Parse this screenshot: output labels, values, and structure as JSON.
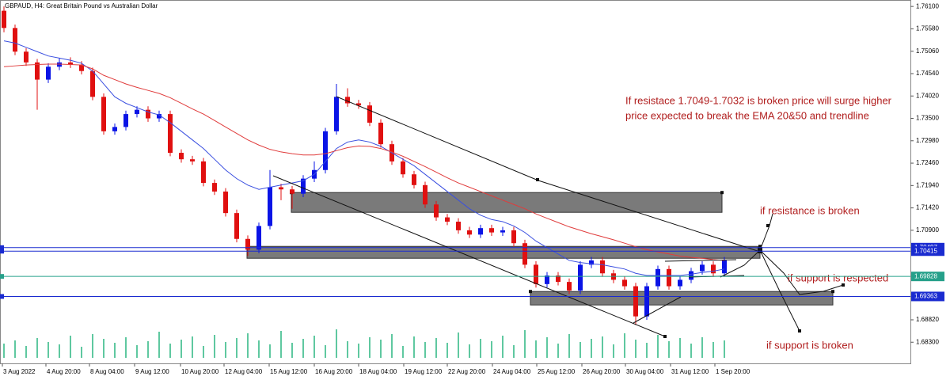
{
  "chart_data": {
    "type": "candlestick",
    "title": "GBPAUD, H4:  Great Britain Pound vs Australian Dollar",
    "up_color": "#0a14e6",
    "down_color": "#e01010",
    "volume_color": "#5fc8a0",
    "ylim": [
      1.679,
      1.7625
    ],
    "yticks": [
      {
        "value": 1.761,
        "label": "1.76100"
      },
      {
        "value": 1.7558,
        "label": "1.75580"
      },
      {
        "value": 1.7506,
        "label": "1.75060"
      },
      {
        "value": 1.7454,
        "label": "1.74540"
      },
      {
        "value": 1.7402,
        "label": "1.74020"
      },
      {
        "value": 1.735,
        "label": "1.73500"
      },
      {
        "value": 1.7298,
        "label": "1.72980"
      },
      {
        "value": 1.7246,
        "label": "1.72460"
      },
      {
        "value": 1.7194,
        "label": "1.71940"
      },
      {
        "value": 1.7142,
        "label": "1.71420"
      },
      {
        "value": 1.709,
        "label": "1.70900"
      },
      {
        "value": 1.6882,
        "label": "1.68820"
      },
      {
        "value": 1.683,
        "label": "1.68300"
      }
    ],
    "xlabels": [
      "3 Aug 2022",
      "4 Aug 20:00",
      "8 Aug 04:00",
      "9 Aug 12:00",
      "10 Aug 20:00",
      "12 Aug 04:00",
      "15 Aug 12:00",
      "16 Aug 20:00",
      "18 Aug 04:00",
      "19 Aug 12:00",
      "22 Aug 20:00",
      "24 Aug 04:00",
      "25 Aug 12:00",
      "26 Aug 20:00",
      "30 Aug 04:00",
      "31 Aug 12:00",
      "1 Sep 20:00"
    ],
    "candles": [
      [
        1.76,
        1.761,
        1.755,
        1.756
      ],
      [
        1.756,
        1.7568,
        1.7497,
        1.7505
      ],
      [
        1.7505,
        1.7513,
        1.7472,
        1.748
      ],
      [
        1.748,
        1.7488,
        1.737,
        1.744
      ],
      [
        1.744,
        1.7478,
        1.7432,
        1.747
      ],
      [
        1.747,
        1.749,
        1.7462,
        1.748
      ],
      [
        1.748,
        1.7492,
        1.7467,
        1.7475
      ],
      [
        1.7475,
        1.7483,
        1.7452,
        1.746
      ],
      [
        1.746,
        1.7468,
        1.7392,
        1.74
      ],
      [
        1.74,
        1.7408,
        1.7312,
        1.732
      ],
      [
        1.732,
        1.7338,
        1.7312,
        1.733
      ],
      [
        1.733,
        1.7368,
        1.7322,
        1.736
      ],
      [
        1.736,
        1.7378,
        1.7352,
        1.737
      ],
      [
        1.737,
        1.7378,
        1.7342,
        1.735
      ],
      [
        1.735,
        1.7368,
        1.7342,
        1.736
      ],
      [
        1.736,
        1.7368,
        1.7262,
        1.727
      ],
      [
        1.727,
        1.7278,
        1.7247,
        1.7255
      ],
      [
        1.7255,
        1.7263,
        1.7242,
        1.725
      ],
      [
        1.725,
        1.7258,
        1.7192,
        1.72
      ],
      [
        1.72,
        1.7208,
        1.7172,
        1.718
      ],
      [
        1.718,
        1.7188,
        1.7122,
        1.713
      ],
      [
        1.713,
        1.7138,
        1.7062,
        1.707
      ],
      [
        1.707,
        1.7078,
        1.703,
        1.7045
      ],
      [
        1.7045,
        1.7108,
        1.7037,
        1.71
      ],
      [
        1.71,
        1.723,
        1.7092,
        1.719
      ],
      [
        1.719,
        1.7198,
        1.716,
        1.7185
      ],
      [
        1.7185,
        1.7193,
        1.714,
        1.7175
      ],
      [
        1.7175,
        1.7218,
        1.7167,
        1.721
      ],
      [
        1.721,
        1.725,
        1.7202,
        1.723
      ],
      [
        1.723,
        1.7328,
        1.7222,
        1.732
      ],
      [
        1.732,
        1.743,
        1.7312,
        1.74
      ],
      [
        1.74,
        1.742,
        1.7377,
        1.7385
      ],
      [
        1.7385,
        1.7393,
        1.7372,
        1.738
      ],
      [
        1.738,
        1.7388,
        1.7332,
        1.734
      ],
      [
        1.734,
        1.7348,
        1.7282,
        1.729
      ],
      [
        1.729,
        1.7298,
        1.7242,
        1.725
      ],
      [
        1.725,
        1.7258,
        1.7212,
        1.722
      ],
      [
        1.722,
        1.7228,
        1.7187,
        1.7195
      ],
      [
        1.7195,
        1.7203,
        1.7142,
        1.715
      ],
      [
        1.715,
        1.7158,
        1.7112,
        1.712
      ],
      [
        1.712,
        1.7128,
        1.7102,
        1.711
      ],
      [
        1.711,
        1.7118,
        1.7082,
        1.709
      ],
      [
        1.709,
        1.7098,
        1.7072,
        1.708
      ],
      [
        1.708,
        1.7103,
        1.7072,
        1.7095
      ],
      [
        1.7095,
        1.7103,
        1.7077,
        1.7085
      ],
      [
        1.7085,
        1.7098,
        1.7077,
        1.709
      ],
      [
        1.709,
        1.7098,
        1.7052,
        1.706
      ],
      [
        1.706,
        1.7068,
        1.7002,
        1.701
      ],
      [
        1.701,
        1.7018,
        1.6957,
        1.6965
      ],
      [
        1.6965,
        1.6993,
        1.6957,
        1.6985
      ],
      [
        1.6985,
        1.6993,
        1.6962,
        1.697
      ],
      [
        1.697,
        1.6978,
        1.6942,
        1.695
      ],
      [
        1.695,
        1.7018,
        1.6942,
        1.701
      ],
      [
        1.701,
        1.7028,
        1.7002,
        1.702
      ],
      [
        1.702,
        1.7028,
        1.6982,
        1.699
      ],
      [
        1.699,
        1.6998,
        1.6967,
        1.6975
      ],
      [
        1.6975,
        1.6983,
        1.6952,
        1.696
      ],
      [
        1.696,
        1.6968,
        1.687,
        1.689
      ],
      [
        1.689,
        1.6968,
        1.6882,
        1.696
      ],
      [
        1.696,
        1.7008,
        1.6952,
        1.7
      ],
      [
        1.7,
        1.7008,
        1.6952,
        1.696
      ],
      [
        1.696,
        1.6983,
        1.6952,
        1.6975
      ],
      [
        1.6975,
        1.7003,
        1.6967,
        1.6995
      ],
      [
        1.6995,
        1.7018,
        1.6987,
        1.701
      ],
      [
        1.701,
        1.7018,
        1.6982,
        1.699
      ],
      [
        1.699,
        1.7028,
        1.6982,
        1.702
      ]
    ],
    "series": [
      {
        "color": "#3a4fe0",
        "values": [
          1.753,
          1.7525,
          1.7515,
          1.7505,
          1.7495,
          1.749,
          1.7485,
          1.7478,
          1.746,
          1.743,
          1.74,
          1.7385,
          1.7375,
          1.7365,
          1.7358,
          1.734,
          1.732,
          1.73,
          1.728,
          1.7255,
          1.723,
          1.721,
          1.7195,
          1.7185,
          1.719,
          1.7195,
          1.72,
          1.7205,
          1.722,
          1.725,
          1.728,
          1.7295,
          1.73,
          1.7295,
          1.7285,
          1.727,
          1.7255,
          1.724,
          1.722,
          1.72,
          1.718,
          1.716,
          1.714,
          1.7125,
          1.7115,
          1.711,
          1.71,
          1.7085,
          1.7065,
          1.705,
          1.7035,
          1.702,
          1.7015,
          1.7012,
          1.701,
          1.7005,
          1.7,
          1.699,
          1.6985,
          1.6985,
          1.6985,
          1.6985,
          1.6988,
          1.6992,
          1.6995,
          1.7
        ]
      },
      {
        "color": "#e03c3c",
        "values": [
          1.747,
          1.7472,
          1.7474,
          1.7475,
          1.7476,
          1.7476,
          1.7475,
          1.7474,
          1.7465,
          1.745,
          1.744,
          1.743,
          1.7422,
          1.7415,
          1.7408,
          1.7398,
          1.7385,
          1.7372,
          1.736,
          1.7345,
          1.733,
          1.7315,
          1.73,
          1.7288,
          1.7278,
          1.7272,
          1.7268,
          1.7265,
          1.7265,
          1.7268,
          1.7275,
          1.7282,
          1.7286,
          1.7285,
          1.728,
          1.7272,
          1.7262,
          1.725,
          1.7238,
          1.7225,
          1.7212,
          1.72,
          1.719,
          1.718,
          1.717,
          1.716,
          1.715,
          1.714,
          1.7128,
          1.7118,
          1.7108,
          1.7098,
          1.709,
          1.7082,
          1.7075,
          1.7068,
          1.706,
          1.7052,
          1.7045,
          1.704,
          1.7035,
          1.703,
          1.7027,
          1.7025,
          1.7022,
          1.702
        ]
      }
    ],
    "volume": [
      18,
      22,
      15,
      25,
      20,
      17,
      28,
      14,
      30,
      24,
      19,
      26,
      16,
      21,
      33,
      18,
      23,
      27,
      15,
      29,
      20,
      25,
      31,
      22,
      17,
      34,
      19,
      24,
      28,
      16,
      36,
      21,
      18,
      26,
      23,
      30,
      15,
      27,
      20,
      25,
      19,
      32,
      17,
      24,
      21,
      28,
      16,
      35,
      22,
      26,
      18,
      30,
      20,
      24,
      27,
      17,
      31,
      23,
      19,
      29,
      21,
      25,
      18,
      26,
      20,
      22
    ],
    "zones": [
      {
        "top": 1.71777,
        "bottom": 1.71317
      },
      {
        "top": 1.70526,
        "bottom": 1.7025
      },
      {
        "top": 1.69478,
        "bottom": 1.69165
      }
    ],
    "price_lines": [
      {
        "value": 1.70497,
        "color": "#1a2bd0"
      },
      {
        "value": 1.70415,
        "color": "#1a2bd0"
      },
      {
        "value": 1.69828,
        "color": "#26a08a"
      },
      {
        "value": 1.69363,
        "color": "#1a2bd0"
      }
    ],
    "annotations": [
      "If resistace 1.7049-1.7032 is broken price will surge higher",
      "price expected to break the EMA 20&50 and trendline",
      "if resistance is broken",
      "if support is respected",
      "if support is broken"
    ]
  }
}
